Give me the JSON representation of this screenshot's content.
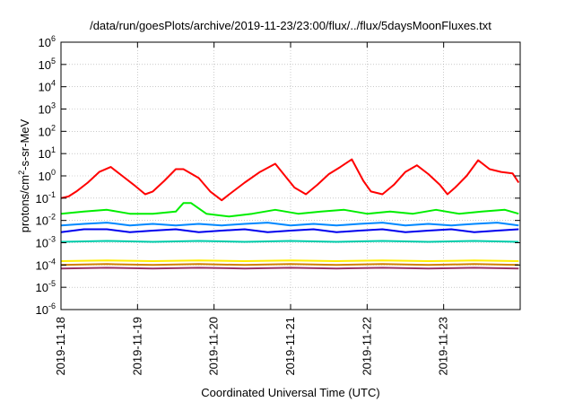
{
  "chart_data": {
    "type": "line",
    "title": "/data/run/goesPlots/archive/2019-11-23/23:00/flux/../flux/5daysMoonFluxes.txt",
    "xlabel": "Coordinated Universal Time (UTC)",
    "ylabel": "protons/cm2-s-sr-MeV",
    "ylabel_parts": {
      "pre": "protons/cm",
      "sup": "2",
      "post": "-s-sr-MeV"
    },
    "yscale": "log",
    "ylim": [
      1e-06,
      1000000.0
    ],
    "xlim": [
      0,
      6
    ],
    "grid": true,
    "x_ticks": [
      {
        "pos": 0,
        "label": "2019-11-18"
      },
      {
        "pos": 1,
        "label": "2019-11-19"
      },
      {
        "pos": 2,
        "label": "2019-11-20"
      },
      {
        "pos": 3,
        "label": "2019-11-21"
      },
      {
        "pos": 4,
        "label": "2019-11-22"
      },
      {
        "pos": 5,
        "label": "2019-11-23"
      }
    ],
    "y_ticks": [
      {
        "exp": -6,
        "base": "10",
        "sup": "-6"
      },
      {
        "exp": -5,
        "base": "10",
        "sup": "-5"
      },
      {
        "exp": -4,
        "base": "10",
        "sup": "-4"
      },
      {
        "exp": -3,
        "base": "10",
        "sup": "-3"
      },
      {
        "exp": -2,
        "base": "10",
        "sup": "-2"
      },
      {
        "exp": -1,
        "base": "10",
        "sup": "-1"
      },
      {
        "exp": 0,
        "base": "10",
        "sup": "0"
      },
      {
        "exp": 1,
        "base": "10",
        "sup": "1"
      },
      {
        "exp": 2,
        "base": "10",
        "sup": "2"
      },
      {
        "exp": 3,
        "base": "10",
        "sup": "3"
      },
      {
        "exp": 4,
        "base": "10",
        "sup": "4"
      },
      {
        "exp": 5,
        "base": "10",
        "sup": "5"
      },
      {
        "exp": 6,
        "base": "10",
        "sup": "6"
      }
    ],
    "series": [
      {
        "color": "#ff0000",
        "x": [
          0.0,
          0.1,
          0.2,
          0.35,
          0.5,
          0.65,
          0.8,
          0.95,
          1.1,
          1.2,
          1.35,
          1.5,
          1.6,
          1.8,
          1.95,
          2.1,
          2.2,
          2.4,
          2.6,
          2.8,
          2.95,
          3.05,
          3.2,
          3.35,
          3.5,
          3.65,
          3.8,
          3.95,
          4.05,
          4.2,
          4.35,
          4.5,
          4.65,
          4.8,
          4.95,
          5.05,
          5.15,
          5.3,
          5.45,
          5.6,
          5.75,
          5.9,
          5.98
        ],
        "y": [
          0.1,
          0.12,
          0.2,
          0.5,
          1.5,
          2.5,
          1.0,
          0.4,
          0.15,
          0.2,
          0.6,
          2.0,
          2.0,
          0.8,
          0.2,
          0.08,
          0.15,
          0.5,
          1.5,
          3.5,
          0.8,
          0.3,
          0.15,
          0.4,
          1.2,
          2.5,
          5.5,
          0.6,
          0.2,
          0.15,
          0.4,
          1.5,
          3.0,
          1.2,
          0.4,
          0.15,
          0.3,
          1.0,
          5.0,
          2.0,
          1.5,
          1.3,
          0.5
        ]
      },
      {
        "color": "#00ee00",
        "x": [
          0.0,
          0.3,
          0.6,
          0.9,
          1.2,
          1.5,
          1.6,
          1.7,
          1.9,
          2.2,
          2.5,
          2.8,
          3.1,
          3.4,
          3.7,
          4.0,
          4.3,
          4.6,
          4.9,
          5.2,
          5.5,
          5.8,
          5.98
        ],
        "y": [
          0.02,
          0.025,
          0.03,
          0.02,
          0.02,
          0.025,
          0.06,
          0.06,
          0.02,
          0.015,
          0.02,
          0.03,
          0.02,
          0.025,
          0.03,
          0.02,
          0.025,
          0.02,
          0.03,
          0.02,
          0.025,
          0.03,
          0.02
        ]
      },
      {
        "color": "#0088ff",
        "x": [
          0.0,
          0.3,
          0.6,
          0.9,
          1.2,
          1.5,
          1.8,
          2.1,
          2.4,
          2.7,
          3.0,
          3.3,
          3.6,
          3.9,
          4.2,
          4.5,
          4.8,
          5.1,
          5.4,
          5.7,
          5.98
        ],
        "y": [
          0.006,
          0.007,
          0.008,
          0.006,
          0.007,
          0.006,
          0.007,
          0.006,
          0.007,
          0.008,
          0.006,
          0.007,
          0.006,
          0.007,
          0.008,
          0.006,
          0.007,
          0.006,
          0.007,
          0.008,
          0.006
        ]
      },
      {
        "color": "#0000ee",
        "x": [
          0.0,
          0.3,
          0.6,
          0.9,
          1.2,
          1.5,
          1.8,
          2.1,
          2.4,
          2.7,
          3.0,
          3.3,
          3.6,
          3.9,
          4.2,
          4.5,
          4.8,
          5.1,
          5.4,
          5.7,
          5.98
        ],
        "y": [
          0.003,
          0.004,
          0.004,
          0.003,
          0.0035,
          0.004,
          0.003,
          0.0035,
          0.004,
          0.003,
          0.0035,
          0.004,
          0.003,
          0.0035,
          0.004,
          0.003,
          0.0035,
          0.004,
          0.003,
          0.0035,
          0.004
        ]
      },
      {
        "color": "#00ccaa",
        "x": [
          0.0,
          0.6,
          1.2,
          1.8,
          2.4,
          3.0,
          3.6,
          4.2,
          4.8,
          5.4,
          5.98
        ],
        "y": [
          0.0011,
          0.0012,
          0.0011,
          0.0012,
          0.0011,
          0.0012,
          0.0011,
          0.0012,
          0.0011,
          0.0012,
          0.0011
        ]
      },
      {
        "color": "#ffee00",
        "x": [
          0.0,
          0.6,
          1.2,
          1.8,
          2.4,
          3.0,
          3.6,
          4.2,
          4.8,
          5.4,
          5.98
        ],
        "y": [
          0.00015,
          0.00016,
          0.00015,
          0.00016,
          0.00015,
          0.00016,
          0.00015,
          0.00016,
          0.00015,
          0.00016,
          0.00015
        ]
      },
      {
        "color": "#d08000",
        "x": [
          0.0,
          0.6,
          1.2,
          1.8,
          2.4,
          3.0,
          3.6,
          4.2,
          4.8,
          5.4,
          5.98
        ],
        "y": [
          0.0001,
          0.00011,
          0.0001,
          0.00011,
          0.0001,
          0.00011,
          0.0001,
          0.00011,
          0.0001,
          0.00011,
          0.0001
        ]
      },
      {
        "color": "#993366",
        "x": [
          0.0,
          0.6,
          1.2,
          1.8,
          2.4,
          3.0,
          3.6,
          4.2,
          4.8,
          5.4,
          5.98
        ],
        "y": [
          7e-05,
          7.5e-05,
          7e-05,
          7.5e-05,
          7e-05,
          7.5e-05,
          7e-05,
          7.5e-05,
          7e-05,
          7.5e-05,
          7e-05
        ]
      }
    ]
  }
}
